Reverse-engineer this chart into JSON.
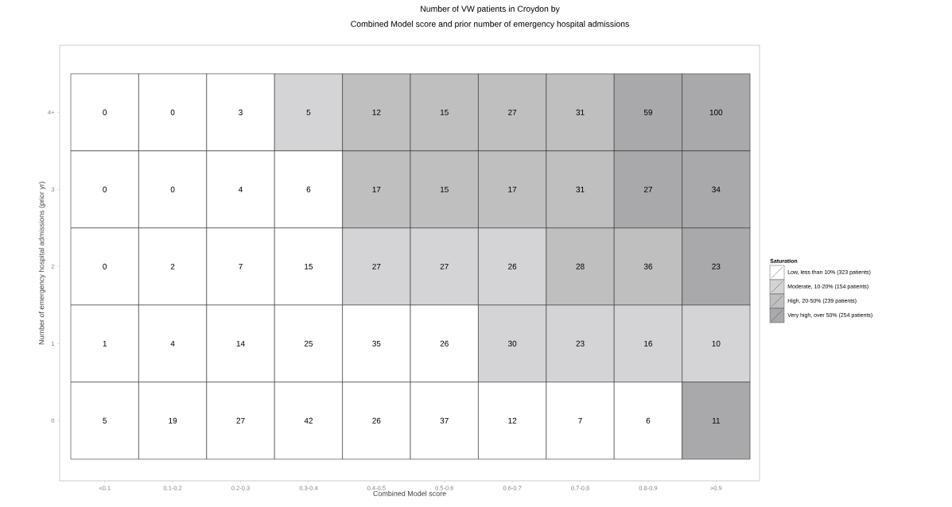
{
  "chart_data": {
    "type": "heatmap",
    "title": "Number of VW patients in Croydon by",
    "subtitle": "Combined Model score and prior number of emergency hospital admissions",
    "xlabel": "Combined Model score",
    "ylabel": "Number of emergency hospital admissions (prior yr)",
    "legend_title": "Saturation",
    "categories": [
      "<0.1",
      "0.1-0.2",
      "0.2-0.3",
      "0.3-0.4",
      "0.4-0.5",
      "0.5-0.6",
      "0.6-0.7",
      "0.7-0.8",
      "0.8-0.9",
      ">0.9"
    ],
    "y_categories": [
      "4+",
      "3",
      "2",
      "1",
      "0"
    ],
    "cells": [
      [
        0,
        0,
        3,
        5,
        12,
        15,
        27,
        31,
        59,
        100
      ],
      [
        0,
        0,
        4,
        6,
        17,
        15,
        17,
        31,
        27,
        34
      ],
      [
        0,
        2,
        7,
        15,
        27,
        27,
        26,
        28,
        36,
        23
      ],
      [
        1,
        4,
        14,
        25,
        35,
        26,
        30,
        23,
        16,
        10
      ],
      [
        5,
        19,
        27,
        42,
        26,
        37,
        12,
        7,
        6,
        11
      ]
    ],
    "data_labels": true,
    "colors": [
      [
        "#ffffff",
        "#ffffff",
        "#ffffff",
        "#d4d3d6",
        "#bfbfbf",
        "#bfbfbf",
        "#bfbfbf",
        "#bfbfbf",
        "#a9a8aa",
        "#a9a8aa"
      ],
      [
        "#ffffff",
        "#ffffff",
        "#ffffff",
        "#ffffff",
        "#bfbfbf",
        "#bfbfbf",
        "#bfbfbf",
        "#bfbfbf",
        "#a9a8aa",
        "#a9a8aa"
      ],
      [
        "#ffffff",
        "#ffffff",
        "#ffffff",
        "#ffffff",
        "#d4d3d6",
        "#d4d3d6",
        "#d4d3d6",
        "#bfbfbf",
        "#bfbfbf",
        "#a9a8aa"
      ],
      [
        "#ffffff",
        "#ffffff",
        "#ffffff",
        "#ffffff",
        "#ffffff",
        "#ffffff",
        "#d4d3d6",
        "#d4d3d6",
        "#d4d3d6",
        "#d4d3d6"
      ],
      [
        "#ffffff",
        "#ffffff",
        "#ffffff",
        "#ffffff",
        "#ffffff",
        "#ffffff",
        "#ffffff",
        "#ffffff",
        "#ffffff",
        "#a9a8aa"
      ]
    ],
    "annotations": [
      "Low, less than 10% (323 patients)",
      "Moderate, 10-20% (154 patients)",
      "High, 20-50% (239 patients)",
      "Very high, over 50% (254 patients)"
    ]
  }
}
